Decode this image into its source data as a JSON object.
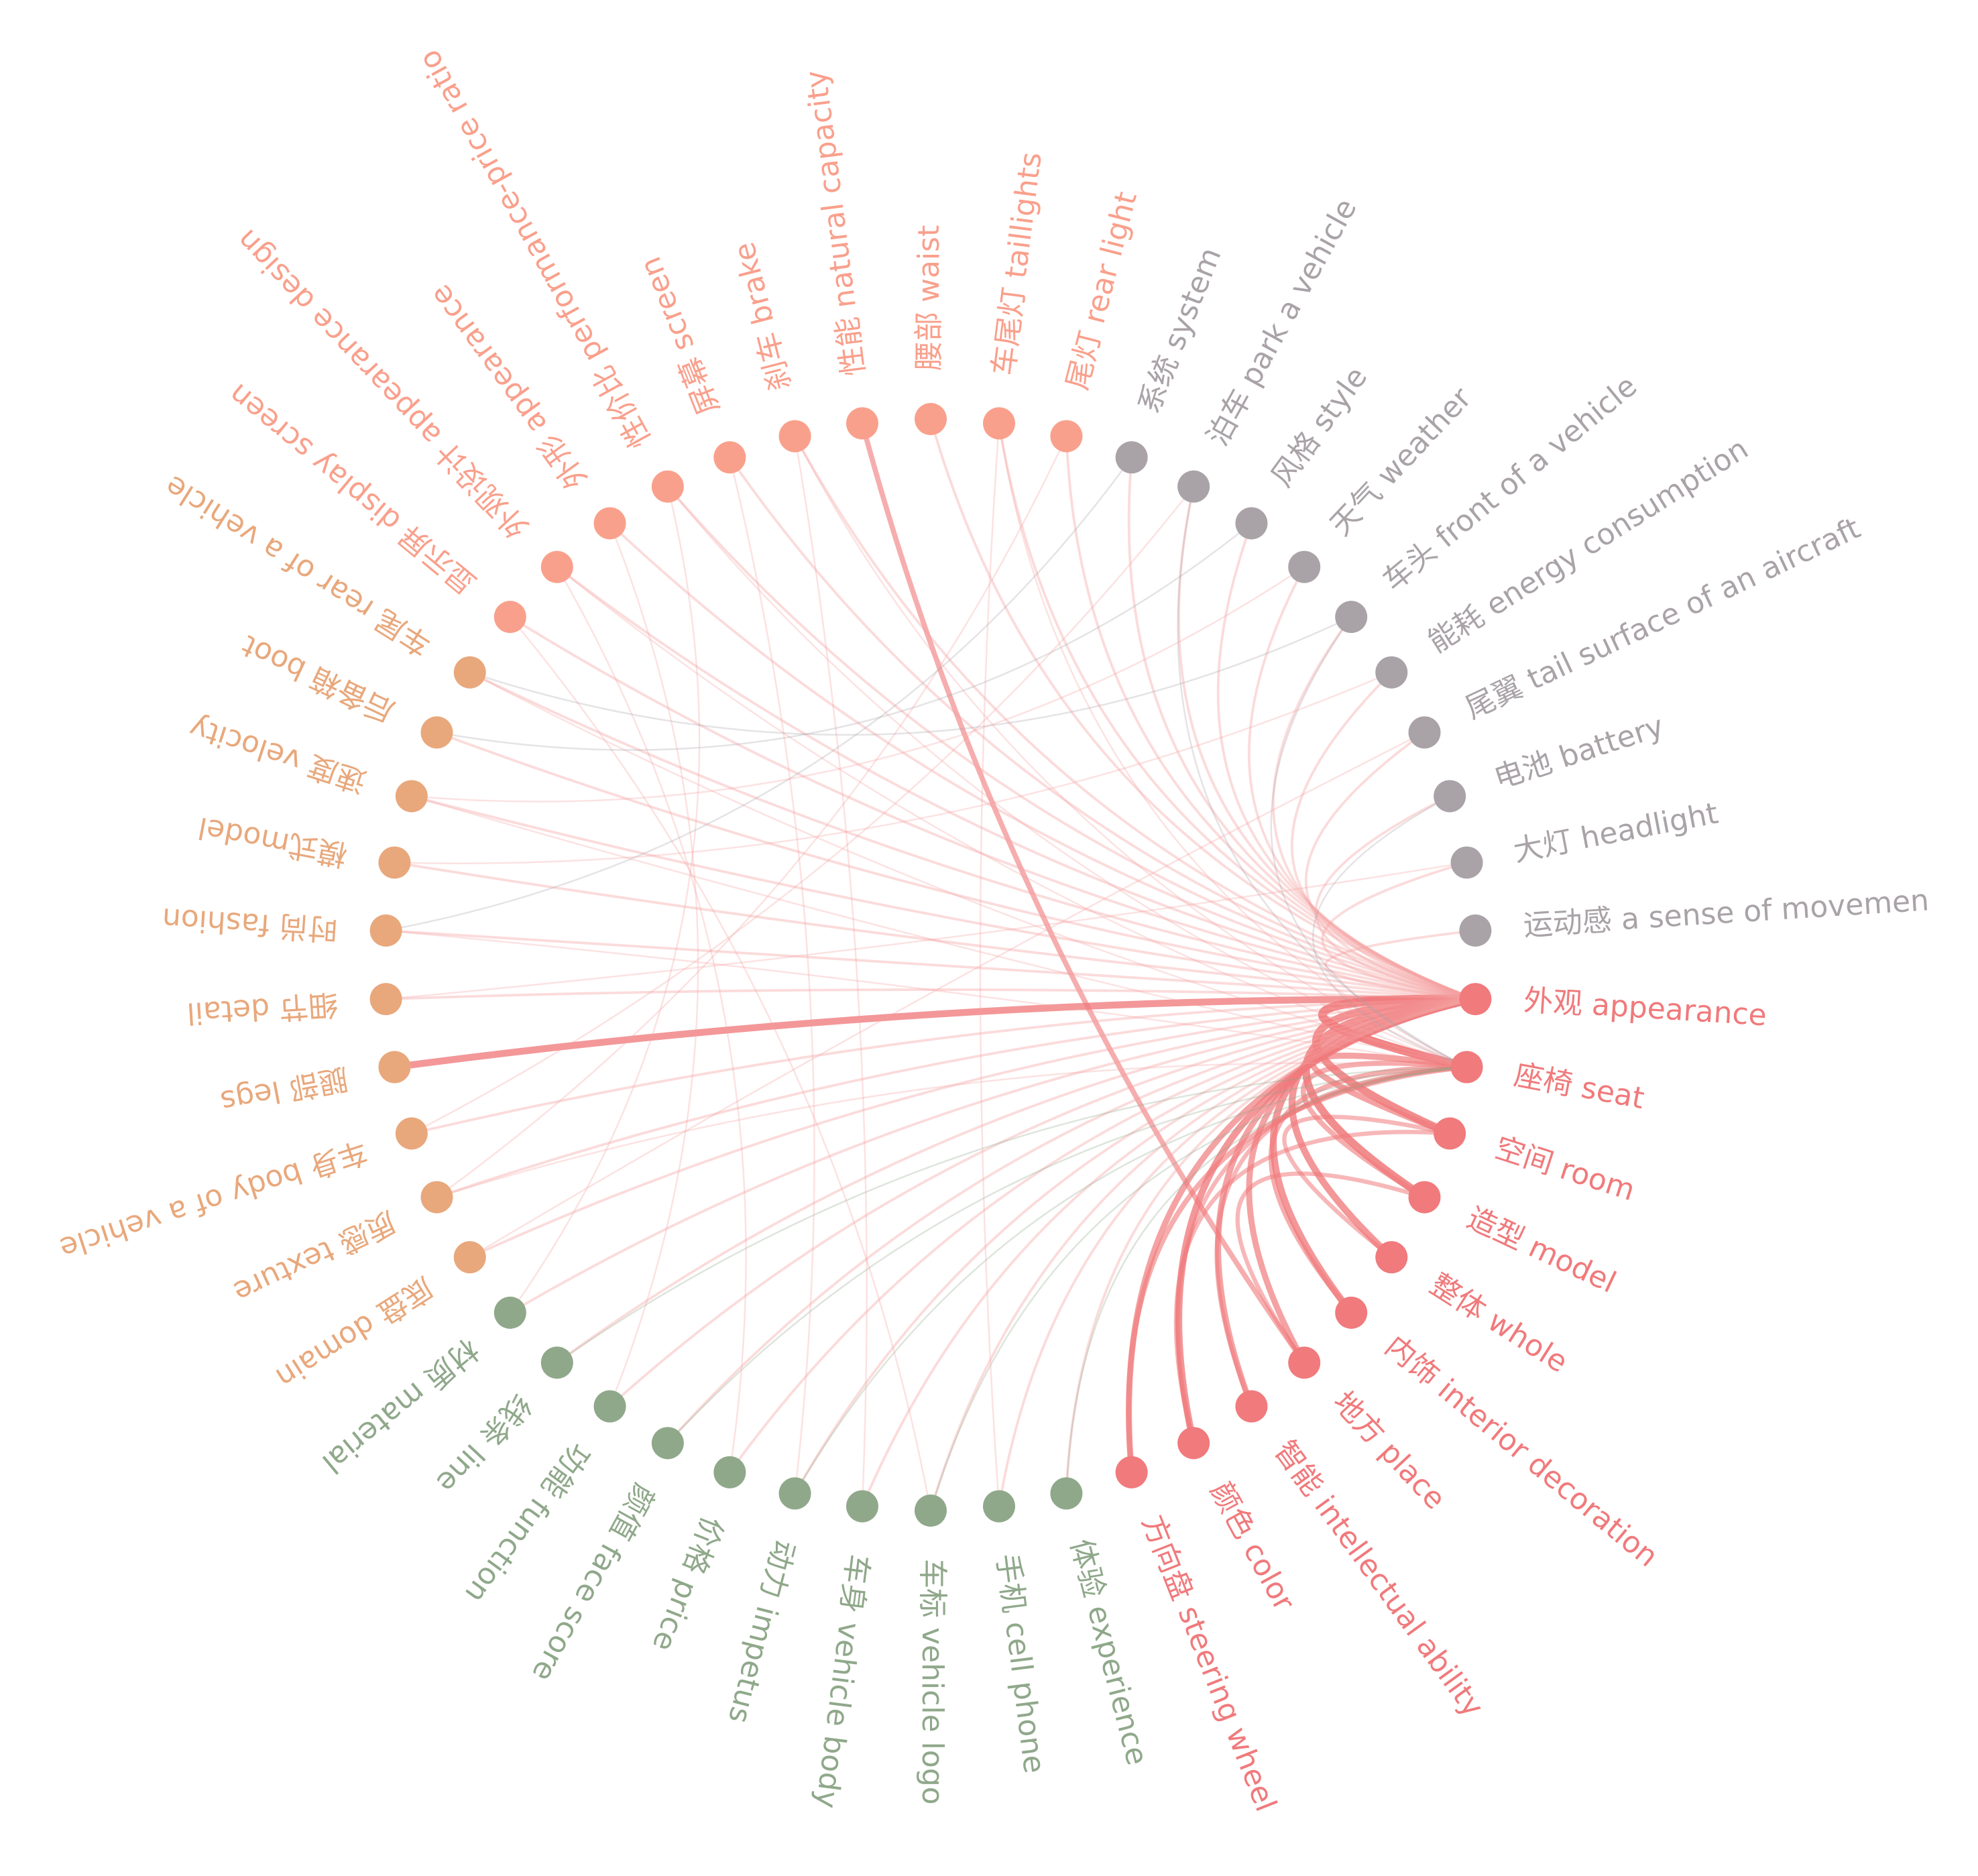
{
  "groups": [
    {
      "color": "#f07a7c",
      "nodes": [
        "外观 appearance",
        "座椅 seat",
        "空间 room",
        "造型 model",
        "整体 whole",
        "内饰 interior decoration",
        "地方 place",
        "智能 intellectual ability",
        "颜色 color",
        "方向盘 steering wheel"
      ]
    },
    {
      "color": "#8fa88a",
      "nodes": [
        "体验 experience",
        "手机 cell phone",
        "车标 vehicle logo",
        "车身 vehicle body",
        "动力 impetus",
        "价格 price",
        "颜值 face score",
        "功能 function",
        "线条 line",
        "材质 material"
      ]
    },
    {
      "color": "#e8a87c",
      "nodes": [
        "底盘 domain",
        "质感 texture",
        "车身 body of a vehicle",
        "腿部 legs",
        "细节 detail",
        "时尚 fashion",
        "模式model",
        "速度 velocity",
        "后备箱 boot",
        "车尾 rear of a vehicle"
      ]
    },
    {
      "color": "#f9a08c",
      "nodes": [
        "显示屏 display screen",
        "外观设计 appearance design",
        "外形 appearance",
        "性价比 performance-price ratio",
        "屏幕 screen",
        "刹车 brake",
        "性能 natural capacity",
        "腰部 waist",
        "车尾灯 taillights",
        "尾灯 rear light"
      ]
    },
    {
      "color": "#a9a3a8",
      "nodes": [
        "系统 system",
        "泊车 park a vehicle",
        "风格 style",
        "天气 weather",
        "车头 front of a vehicle",
        "能耗 energy consumption",
        "尾翼 tail surface of an aircraft",
        "电池 battery",
        "大灯 headlight",
        "运动感 a sense of movemen"
      ]
    }
  ],
  "edges": [
    [
      0,
      1,
      9
    ],
    [
      0,
      2,
      8
    ],
    [
      0,
      3,
      8
    ],
    [
      0,
      4,
      7
    ],
    [
      0,
      5,
      7
    ],
    [
      0,
      6,
      6
    ],
    [
      0,
      7,
      6
    ],
    [
      0,
      8,
      7
    ],
    [
      0,
      9,
      6
    ],
    [
      1,
      2,
      6
    ],
    [
      1,
      3,
      5
    ],
    [
      1,
      5,
      5
    ],
    [
      1,
      8,
      4
    ],
    [
      2,
      4,
      4
    ],
    [
      3,
      6,
      4
    ],
    [
      23,
      0,
      7
    ],
    [
      36,
      6,
      5
    ],
    [
      9,
      1,
      5
    ],
    [
      8,
      2,
      4
    ],
    [
      7,
      1,
      4
    ],
    [
      10,
      0,
      2
    ],
    [
      11,
      0,
      2
    ],
    [
      12,
      0,
      2
    ],
    [
      13,
      0,
      2
    ],
    [
      14,
      0,
      2
    ],
    [
      15,
      0,
      2
    ],
    [
      16,
      0,
      2
    ],
    [
      17,
      0,
      2
    ],
    [
      18,
      0,
      2
    ],
    [
      19,
      0,
      2
    ],
    [
      20,
      0,
      2
    ],
    [
      21,
      0,
      2
    ],
    [
      22,
      0,
      2
    ],
    [
      24,
      0,
      2
    ],
    [
      25,
      0,
      2
    ],
    [
      26,
      0,
      2
    ],
    [
      27,
      0,
      2
    ],
    [
      28,
      0,
      2
    ],
    [
      29,
      0,
      2
    ],
    [
      30,
      0,
      2
    ],
    [
      31,
      0,
      2
    ],
    [
      32,
      0,
      2
    ],
    [
      33,
      0,
      2
    ],
    [
      34,
      0,
      2
    ],
    [
      35,
      0,
      2
    ],
    [
      37,
      0,
      2
    ],
    [
      38,
      0,
      2
    ],
    [
      39,
      0,
      2
    ],
    [
      40,
      0,
      2
    ],
    [
      41,
      0,
      2
    ],
    [
      42,
      0,
      2
    ],
    [
      43,
      0,
      2
    ],
    [
      44,
      0,
      2
    ],
    [
      45,
      0,
      2
    ],
    [
      46,
      0,
      2
    ],
    [
      47,
      0,
      2
    ],
    [
      48,
      0,
      2
    ],
    [
      49,
      0,
      2
    ],
    [
      10,
      1,
      1
    ],
    [
      12,
      1,
      1
    ],
    [
      14,
      1,
      1
    ],
    [
      16,
      1,
      1
    ],
    [
      18,
      1,
      1
    ],
    [
      21,
      1,
      1
    ],
    [
      25,
      1,
      1
    ],
    [
      27,
      1,
      1
    ],
    [
      29,
      1,
      1
    ],
    [
      31,
      1,
      1
    ],
    [
      33,
      1,
      1
    ],
    [
      35,
      1,
      1
    ],
    [
      38,
      1,
      1
    ],
    [
      41,
      1,
      1
    ],
    [
      44,
      1,
      1
    ],
    [
      47,
      1,
      1
    ],
    [
      30,
      12,
      1
    ],
    [
      31,
      15,
      1
    ],
    [
      33,
      19,
      1
    ],
    [
      35,
      13,
      1
    ],
    [
      39,
      21,
      1
    ],
    [
      40,
      25,
      1
    ],
    [
      42,
      28,
      1
    ],
    [
      44,
      29,
      1
    ],
    [
      38,
      11,
      1
    ],
    [
      32,
      17,
      1
    ],
    [
      26,
      45,
      1
    ],
    [
      24,
      48,
      1
    ],
    [
      20,
      46,
      1
    ],
    [
      22,
      41,
      1
    ],
    [
      27,
      43,
      1
    ],
    [
      34,
      14,
      1
    ]
  ]
}
